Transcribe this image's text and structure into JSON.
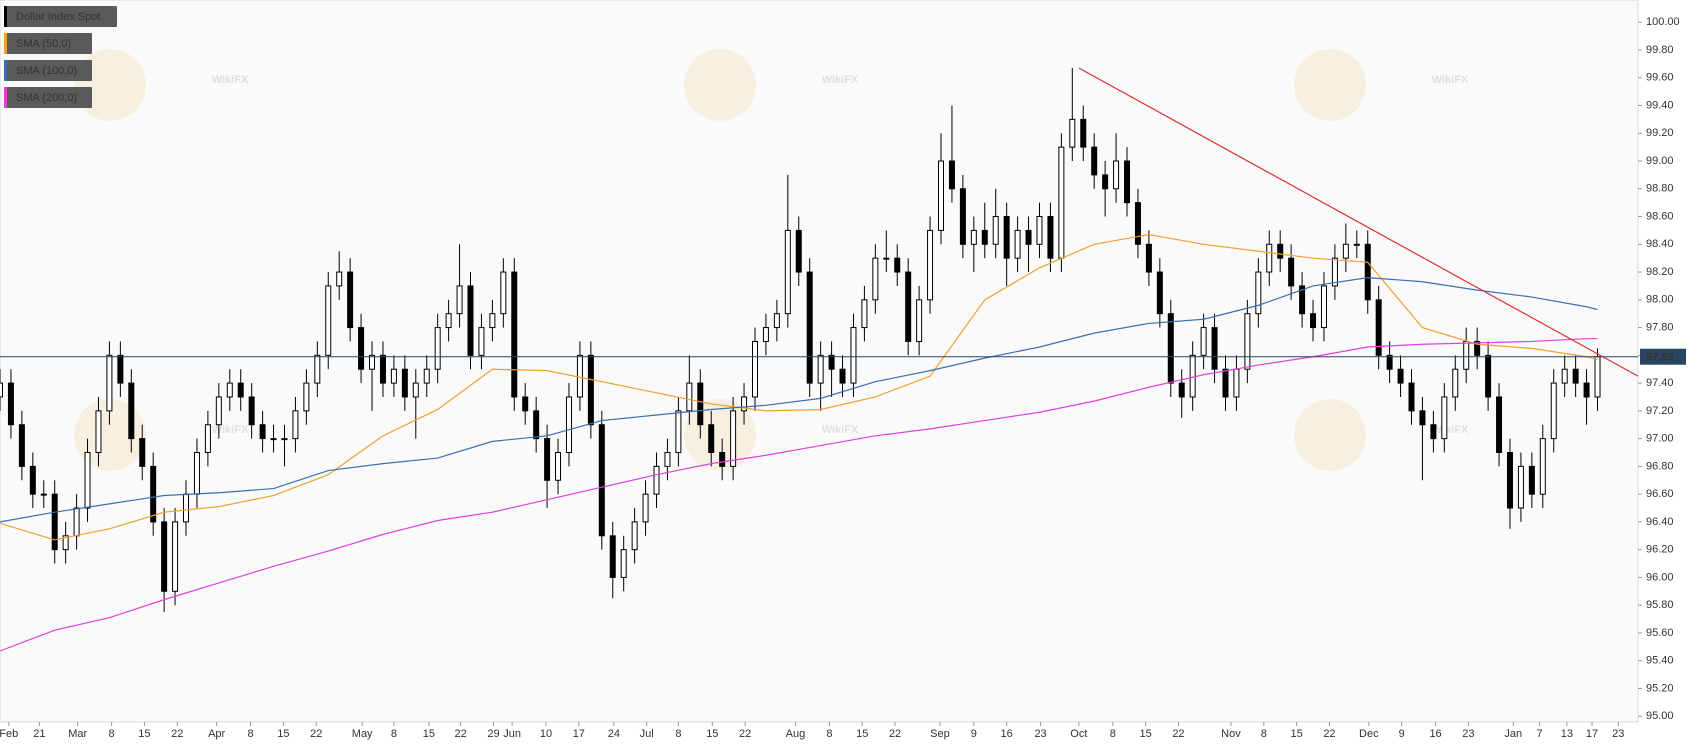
{
  "chart_data": {
    "type": "candlestick",
    "watermark": "WikiFX",
    "last_price": 97.59,
    "last_price_color": "#2a4560",
    "grid": true,
    "xlim": [
      0,
      149.7
    ],
    "ylim": [
      94.98,
      100.16
    ],
    "yticks": [
      {
        "value": 95,
        "label": "95.00"
      },
      {
        "value": 95.2,
        "label": "95.20"
      },
      {
        "value": 95.4,
        "label": "95.40"
      },
      {
        "value": 95.6,
        "label": "95.60"
      },
      {
        "value": 95.8,
        "label": "95.80"
      },
      {
        "value": 96,
        "label": "96.00"
      },
      {
        "value": 96.2,
        "label": "96.20"
      },
      {
        "value": 96.4,
        "label": "96.40"
      },
      {
        "value": 96.6,
        "label": "96.60"
      },
      {
        "value": 96.8,
        "label": "96.80"
      },
      {
        "value": 97,
        "label": "97.00"
      },
      {
        "value": 97.2,
        "label": "97.20"
      },
      {
        "value": 97.4,
        "label": "97.40"
      },
      {
        "value": 97.6,
        "label": "97.60"
      },
      {
        "value": 97.8,
        "label": "97.80"
      },
      {
        "value": 98,
        "label": "98.00"
      },
      {
        "value": 98.2,
        "label": "98.20"
      },
      {
        "value": 98.4,
        "label": "98.40"
      },
      {
        "value": 98.6,
        "label": "98.60"
      },
      {
        "value": 98.8,
        "label": "98.80"
      },
      {
        "value": 99,
        "label": "99.00"
      },
      {
        "value": 99.2,
        "label": "99.20"
      },
      {
        "value": 99.4,
        "label": "99.40"
      },
      {
        "value": 99.6,
        "label": "99.60"
      },
      {
        "value": 99.8,
        "label": "99.80"
      },
      {
        "value": 100,
        "label": "100.00"
      }
    ],
    "xticks": [
      {
        "value": 0.8,
        "label": "Feb"
      },
      {
        "value": 3.6,
        "label": "21"
      },
      {
        "value": 7.1,
        "label": "Mar"
      },
      {
        "value": 10.2,
        "label": "8"
      },
      {
        "value": 13.2,
        "label": "15"
      },
      {
        "value": 16.2,
        "label": "22"
      },
      {
        "value": 19.8,
        "label": "Apr"
      },
      {
        "value": 22.9,
        "label": "8"
      },
      {
        "value": 25.9,
        "label": "15"
      },
      {
        "value": 28.9,
        "label": "22"
      },
      {
        "value": 33.1,
        "label": "May"
      },
      {
        "value": 36.0,
        "label": "8"
      },
      {
        "value": 39.2,
        "label": "15"
      },
      {
        "value": 42.1,
        "label": "22"
      },
      {
        "value": 45.1,
        "label": "29"
      },
      {
        "value": 46.8,
        "label": "Jun"
      },
      {
        "value": 49.9,
        "label": "10"
      },
      {
        "value": 52.9,
        "label": "17"
      },
      {
        "value": 56.1,
        "label": "24"
      },
      {
        "value": 59.1,
        "label": "Jul"
      },
      {
        "value": 62.0,
        "label": "8"
      },
      {
        "value": 65.1,
        "label": "15"
      },
      {
        "value": 68.1,
        "label": "22"
      },
      {
        "value": 72.7,
        "label": "Aug"
      },
      {
        "value": 75.8,
        "label": "8"
      },
      {
        "value": 78.8,
        "label": "15"
      },
      {
        "value": 81.8,
        "label": "22"
      },
      {
        "value": 85.9,
        "label": "Sep"
      },
      {
        "value": 89.0,
        "label": "9"
      },
      {
        "value": 92.0,
        "label": "16"
      },
      {
        "value": 95.1,
        "label": "23"
      },
      {
        "value": 98.6,
        "label": "Oct"
      },
      {
        "value": 101.7,
        "label": "8"
      },
      {
        "value": 104.7,
        "label": "15"
      },
      {
        "value": 107.7,
        "label": "22"
      },
      {
        "value": 112.5,
        "label": "Nov"
      },
      {
        "value": 115.5,
        "label": "8"
      },
      {
        "value": 118.5,
        "label": "15"
      },
      {
        "value": 121.5,
        "label": "22"
      },
      {
        "value": 125.1,
        "label": "Dec"
      },
      {
        "value": 128.1,
        "label": "9"
      },
      {
        "value": 131.2,
        "label": "16"
      },
      {
        "value": 134.2,
        "label": "23"
      },
      {
        "value": 138.3,
        "label": "Jan"
      },
      {
        "value": 140.7,
        "label": "7"
      },
      {
        "value": 143.2,
        "label": "13"
      },
      {
        "value": 145.5,
        "label": "17"
      },
      {
        "value": 147.9,
        "label": "23"
      }
    ],
    "trendline": {
      "color": "#d93030",
      "x": [
        98.6,
        149.7
      ],
      "values": [
        99.67,
        97.45
      ]
    },
    "series": [
      {
        "name": "Dollar Index Spot",
        "color": "#000000",
        "open": [
          97.3,
          97.4,
          97.1,
          96.8,
          96.6,
          96.6,
          96.2,
          96.3,
          96.5,
          96.9,
          97.2,
          97.6,
          97.4,
          97.0,
          96.8,
          96.4,
          95.9,
          96.4,
          96.6,
          96.9,
          97.1,
          97.3,
          97.4,
          97.3,
          97.1,
          97.0,
          97.0,
          97.0,
          97.2,
          97.4,
          97.6,
          98.1,
          98.2,
          97.8,
          97.5,
          97.6,
          97.4,
          97.5,
          97.3,
          97.4,
          97.5,
          97.8,
          97.9,
          98.1,
          97.6,
          97.8,
          97.9,
          98.2,
          97.3,
          97.2,
          97.0,
          96.7,
          96.9,
          97.3,
          97.6,
          97.1,
          96.3,
          96.0,
          96.2,
          96.4,
          96.6,
          96.8,
          96.9,
          97.2,
          97.4,
          97.1,
          96.9,
          96.8,
          97.2,
          97.3,
          97.7,
          97.8,
          97.9,
          98.5,
          98.2,
          97.4,
          97.6,
          97.5,
          97.4,
          97.8,
          98.0,
          98.3,
          98.3,
          98.2,
          97.7,
          98.0,
          98.5,
          99.0,
          98.8,
          98.4,
          98.5,
          98.4,
          98.6,
          98.3,
          98.5,
          98.4,
          98.6,
          98.3,
          99.1,
          99.3,
          99.1,
          98.9,
          98.8,
          99.0,
          98.7,
          98.4,
          98.2,
          97.9,
          97.4,
          97.3,
          97.6,
          97.8,
          97.5,
          97.3,
          97.5,
          97.9,
          98.2,
          98.4,
          98.3,
          98.1,
          97.9,
          97.8,
          98.1,
          98.3,
          98.4,
          98.4,
          98.0,
          97.6,
          97.5,
          97.4,
          97.2,
          97.1,
          97.0,
          97.3,
          97.5,
          97.7,
          97.6,
          97.3,
          96.9,
          96.5,
          96.8,
          96.6,
          97.0,
          97.4,
          97.5,
          97.4,
          97.3
        ],
        "high": [
          97.5,
          97.5,
          97.2,
          96.9,
          96.7,
          96.7,
          96.4,
          96.6,
          97.0,
          97.3,
          97.7,
          97.7,
          97.5,
          97.1,
          96.9,
          96.5,
          96.5,
          96.7,
          97.0,
          97.2,
          97.4,
          97.5,
          97.5,
          97.4,
          97.2,
          97.1,
          97.1,
          97.3,
          97.5,
          97.7,
          98.2,
          98.35,
          98.3,
          97.9,
          97.7,
          97.7,
          97.6,
          97.6,
          97.5,
          97.6,
          97.9,
          98.0,
          98.4,
          98.2,
          97.9,
          98.0,
          98.3,
          98.3,
          97.4,
          97.3,
          97.1,
          97.0,
          97.4,
          97.7,
          97.7,
          97.2,
          96.4,
          96.3,
          96.5,
          96.7,
          96.9,
          97.0,
          97.3,
          97.6,
          97.5,
          97.2,
          97.0,
          97.3,
          97.4,
          97.8,
          97.9,
          98.0,
          98.9,
          98.6,
          98.3,
          97.7,
          97.7,
          97.6,
          97.9,
          98.1,
          98.4,
          98.5,
          98.4,
          98.3,
          98.1,
          98.6,
          99.2,
          99.4,
          98.9,
          98.6,
          98.7,
          98.8,
          98.7,
          98.6,
          98.6,
          98.7,
          98.7,
          99.2,
          99.67,
          99.4,
          99.2,
          99.0,
          99.2,
          99.1,
          98.8,
          98.5,
          98.3,
          98.0,
          97.5,
          97.7,
          97.9,
          97.9,
          97.6,
          97.6,
          98.0,
          98.3,
          98.5,
          98.5,
          98.4,
          98.2,
          98.0,
          98.2,
          98.4,
          98.55,
          98.5,
          98.5,
          98.1,
          97.7,
          97.6,
          97.5,
          97.3,
          97.2,
          97.4,
          97.6,
          97.8,
          97.8,
          97.7,
          97.4,
          97.0,
          96.9,
          96.9,
          97.1,
          97.5,
          97.6,
          97.6,
          97.5,
          97.65
        ],
        "low": [
          97.2,
          97.0,
          96.7,
          96.5,
          96.5,
          96.1,
          96.1,
          96.2,
          96.4,
          96.8,
          97.1,
          97.3,
          96.9,
          96.7,
          96.3,
          95.75,
          95.8,
          96.3,
          96.5,
          96.8,
          97.0,
          97.2,
          97.2,
          97.0,
          96.9,
          96.9,
          96.8,
          96.9,
          97.1,
          97.3,
          97.5,
          98.0,
          97.7,
          97.4,
          97.2,
          97.3,
          97.3,
          97.2,
          97.0,
          97.3,
          97.4,
          97.7,
          97.8,
          97.5,
          97.5,
          97.7,
          97.8,
          97.2,
          97.1,
          96.9,
          96.5,
          96.6,
          96.8,
          97.2,
          97.0,
          96.2,
          95.85,
          95.9,
          96.1,
          96.3,
          96.5,
          96.7,
          96.8,
          97.1,
          97.0,
          96.8,
          96.7,
          96.7,
          97.1,
          97.2,
          97.6,
          97.7,
          97.8,
          98.1,
          97.3,
          97.2,
          97.3,
          97.3,
          97.3,
          97.7,
          97.9,
          98.2,
          98.1,
          97.6,
          97.6,
          97.9,
          98.4,
          98.7,
          98.3,
          98.2,
          98.3,
          98.3,
          98.1,
          98.2,
          98.2,
          98.3,
          98.2,
          98.2,
          99.0,
          99.0,
          98.8,
          98.6,
          98.7,
          98.6,
          98.3,
          98.1,
          97.8,
          97.3,
          97.15,
          97.2,
          97.5,
          97.4,
          97.2,
          97.2,
          97.4,
          97.8,
          98.1,
          98.2,
          98.0,
          97.8,
          97.7,
          97.7,
          98.0,
          98.2,
          98.3,
          97.9,
          97.5,
          97.4,
          97.3,
          97.1,
          96.7,
          96.9,
          96.9,
          97.2,
          97.4,
          97.5,
          97.2,
          96.8,
          96.35,
          96.4,
          96.5,
          96.5,
          96.9,
          97.3,
          97.3,
          97.1,
          97.2
        ],
        "close": [
          97.4,
          97.1,
          96.8,
          96.6,
          96.6,
          96.2,
          96.3,
          96.5,
          96.9,
          97.2,
          97.6,
          97.4,
          97.0,
          96.8,
          96.4,
          95.9,
          96.4,
          96.6,
          96.9,
          97.1,
          97.3,
          97.4,
          97.3,
          97.1,
          97.0,
          97.0,
          97.0,
          97.2,
          97.4,
          97.6,
          98.1,
          98.2,
          97.8,
          97.5,
          97.6,
          97.4,
          97.5,
          97.3,
          97.4,
          97.5,
          97.8,
          97.9,
          98.1,
          97.6,
          97.8,
          97.9,
          98.2,
          97.3,
          97.2,
          97.0,
          96.7,
          96.9,
          97.3,
          97.6,
          97.1,
          96.3,
          96.0,
          96.2,
          96.4,
          96.6,
          96.8,
          96.9,
          97.2,
          97.4,
          97.1,
          96.9,
          96.8,
          97.2,
          97.3,
          97.7,
          97.8,
          97.9,
          98.5,
          98.2,
          97.4,
          97.6,
          97.5,
          97.4,
          97.8,
          98.0,
          98.3,
          98.3,
          98.2,
          97.7,
          98.0,
          98.5,
          99.0,
          98.8,
          98.4,
          98.5,
          98.4,
          98.6,
          98.3,
          98.5,
          98.4,
          98.6,
          98.3,
          99.1,
          99.3,
          99.1,
          98.9,
          98.8,
          99.0,
          98.7,
          98.4,
          98.2,
          97.9,
          97.4,
          97.3,
          97.6,
          97.8,
          97.5,
          97.3,
          97.5,
          97.9,
          98.2,
          98.4,
          98.3,
          98.1,
          97.9,
          97.8,
          98.1,
          98.3,
          98.4,
          98.4,
          98.0,
          97.6,
          97.5,
          97.4,
          97.2,
          97.1,
          97.0,
          97.3,
          97.5,
          97.7,
          97.6,
          97.3,
          96.9,
          96.5,
          96.8,
          96.6,
          97.0,
          97.4,
          97.5,
          97.4,
          97.3,
          97.59
        ]
      },
      {
        "name": "SMA (50,0)",
        "color": "#f0a030",
        "x": [
          0,
          5,
          10,
          15,
          20,
          25,
          30,
          35,
          40,
          45,
          50,
          55,
          60,
          65,
          70,
          75,
          80,
          85,
          90,
          95,
          100,
          105,
          110,
          115,
          120,
          125,
          130,
          135,
          140,
          145,
          146
        ],
        "values": [
          96.39,
          96.27,
          96.35,
          96.47,
          96.51,
          96.59,
          96.74,
          97.02,
          97.21,
          97.5,
          97.49,
          97.41,
          97.33,
          97.25,
          97.2,
          97.21,
          97.3,
          97.45,
          98.0,
          98.23,
          98.4,
          98.47,
          98.4,
          98.35,
          98.3,
          98.27,
          97.8,
          97.68,
          97.65,
          97.59,
          97.57
        ]
      },
      {
        "name": "SMA (100,0)",
        "color": "#3a70b0",
        "x": [
          0,
          5,
          10,
          15,
          20,
          25,
          30,
          35,
          40,
          45,
          50,
          55,
          60,
          65,
          70,
          75,
          80,
          85,
          90,
          95,
          100,
          105,
          110,
          115,
          120,
          125,
          130,
          135,
          140,
          145,
          146
        ],
        "values": [
          96.4,
          96.47,
          96.53,
          96.59,
          96.61,
          96.64,
          96.77,
          96.82,
          96.86,
          96.98,
          97.02,
          97.13,
          97.17,
          97.21,
          97.24,
          97.29,
          97.41,
          97.49,
          97.58,
          97.66,
          97.76,
          97.83,
          97.86,
          97.96,
          98.1,
          98.16,
          98.13,
          98.07,
          98.02,
          97.95,
          97.93
        ]
      },
      {
        "name": "SMA (200,0)",
        "color": "#e040e0",
        "x": [
          0,
          5,
          10,
          15,
          20,
          25,
          30,
          35,
          40,
          45,
          50,
          55,
          60,
          65,
          70,
          75,
          80,
          85,
          90,
          95,
          100,
          105,
          110,
          115,
          120,
          125,
          130,
          135,
          140,
          145,
          146
        ],
        "values": [
          95.47,
          95.62,
          95.71,
          95.84,
          95.96,
          96.08,
          96.19,
          96.31,
          96.41,
          96.47,
          96.56,
          96.65,
          96.74,
          96.82,
          96.88,
          96.95,
          97.02,
          97.07,
          97.13,
          97.19,
          97.27,
          97.37,
          97.46,
          97.53,
          97.59,
          97.66,
          97.68,
          97.69,
          97.7,
          97.72,
          97.72
        ]
      }
    ]
  }
}
